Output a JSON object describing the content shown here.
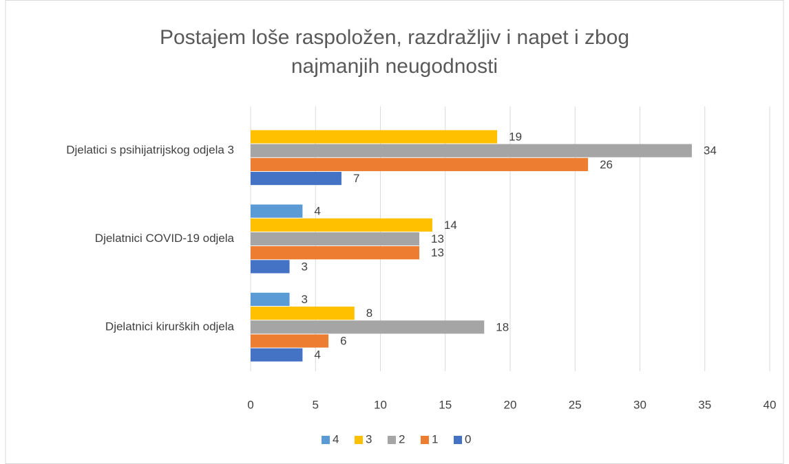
{
  "chart_data": {
    "type": "barh",
    "title": "Postajem loše raspoložen, razdražljiv i napet i zbog najmanjih neugodnosti",
    "categories": [
      "Djelatnici kirurških odjela",
      "Djelatnici COVID-19 odjela",
      "Djelatici s psihijatrijskog odjela 3"
    ],
    "series": [
      {
        "name": "4",
        "color": "#5b9bd5",
        "values": [
          3,
          4,
          null
        ]
      },
      {
        "name": "3",
        "color": "#ffc000",
        "values": [
          8,
          14,
          19
        ]
      },
      {
        "name": "2",
        "color": "#a5a5a5",
        "values": [
          18,
          13,
          34
        ]
      },
      {
        "name": "1",
        "color": "#ed7d31",
        "values": [
          6,
          13,
          26
        ]
      },
      {
        "name": "0",
        "color": "#4472c4",
        "values": [
          4,
          3,
          7
        ]
      }
    ],
    "xlim": [
      0,
      40
    ],
    "xticks": [
      0,
      5,
      10,
      15,
      20,
      25,
      30,
      35,
      40
    ],
    "grid": true,
    "legend": "bottom"
  }
}
